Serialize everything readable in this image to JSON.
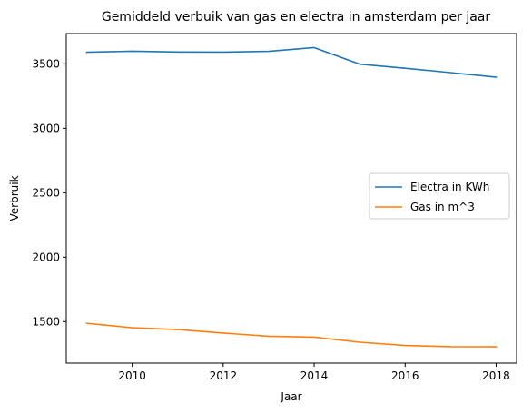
{
  "chart_data": {
    "type": "line",
    "title": "Gemiddeld verbuik van gas en electra in amsterdam per jaar",
    "xlabel": "Jaar",
    "ylabel": "Verbruik",
    "x": [
      2009,
      2010,
      2011,
      2012,
      2013,
      2014,
      2015,
      2016,
      2017,
      2018
    ],
    "xlim": [
      2008.55,
      2018.45
    ],
    "ylim": [
      1178,
      3735
    ],
    "xticks": [
      2010,
      2012,
      2014,
      2016,
      2018
    ],
    "yticks": [
      1500,
      2000,
      2500,
      3000,
      3500
    ],
    "grid": false,
    "legend_position": "center-right",
    "series": [
      {
        "name": "Electra in KWh",
        "color": "#1f77b4",
        "values": [
          3590,
          3598,
          3592,
          3591,
          3597,
          3626,
          3498,
          3466,
          3432,
          3397
        ]
      },
      {
        "name": "Gas in m^3",
        "color": "#ff7f0e",
        "values": [
          1487,
          1452,
          1438,
          1411,
          1386,
          1379,
          1340,
          1315,
          1305,
          1304
        ]
      }
    ]
  }
}
